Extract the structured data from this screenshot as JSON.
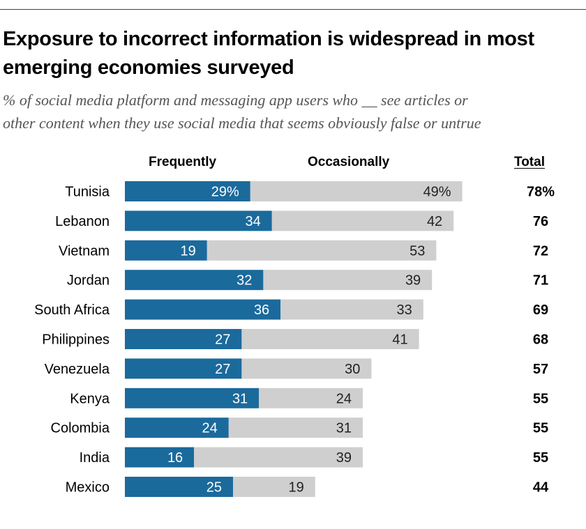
{
  "title": "Exposure to incorrect information is widespread in most emerging economies surveyed",
  "subtitle_line1": "% of social media platform and messaging app users who __ see articles or",
  "subtitle_line2": "other content when they use social media that seems obviously false or untrue",
  "colors": {
    "frequently": "#1b6a9c",
    "occasionally": "#cfcfd0"
  },
  "chart_data": {
    "type": "bar",
    "orientation": "horizontal",
    "stacked": true,
    "title": "Exposure to incorrect information is widespread in most emerging economies surveyed",
    "categories": [
      "Tunisia",
      "Lebanon",
      "Vietnam",
      "Jordan",
      "South Africa",
      "Philippines",
      "Venezuela",
      "Kenya",
      "Colombia",
      "India",
      "Mexico"
    ],
    "series": [
      {
        "name": "Frequently",
        "values": [
          29,
          34,
          19,
          32,
          36,
          27,
          27,
          31,
          24,
          16,
          25
        ]
      },
      {
        "name": "Occasionally",
        "values": [
          49,
          42,
          53,
          39,
          33,
          41,
          30,
          24,
          31,
          39,
          19
        ]
      }
    ],
    "value_labels": {
      "frequently": [
        "29%",
        "34",
        "19",
        "32",
        "36",
        "27",
        "27",
        "31",
        "24",
        "16",
        "25"
      ],
      "occasionally": [
        "49%",
        "42",
        "53",
        "39",
        "33",
        "41",
        "30",
        "24",
        "31",
        "39",
        "19"
      ]
    },
    "totals_header": "Total",
    "totals": [
      "78%",
      "76",
      "72",
      "71",
      "69",
      "68",
      "57",
      "55",
      "55",
      "55",
      "44"
    ],
    "xlabel": "",
    "ylabel": "",
    "xlim": [
      0,
      80
    ],
    "grid": false,
    "legend": "top"
  }
}
